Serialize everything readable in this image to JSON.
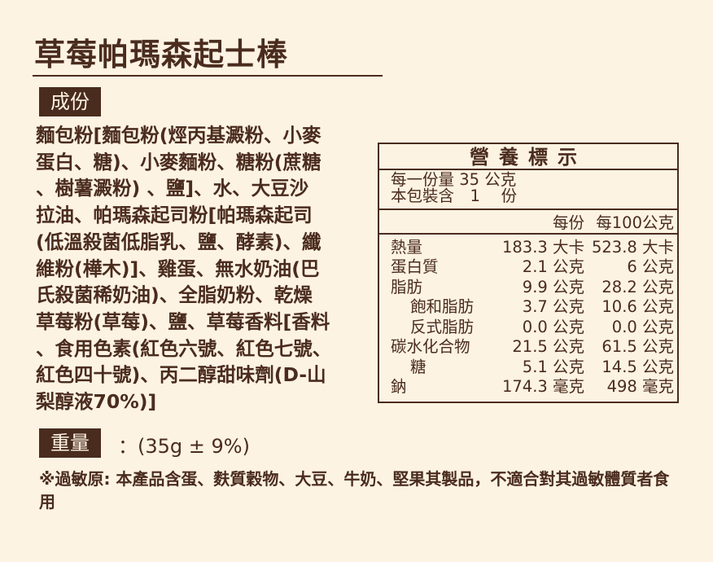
{
  "title": "草莓帕瑪森起士棒",
  "ingredients": {
    "label": "成份",
    "lines": [
      "麵包粉[麵包粉(烴丙基澱粉、小麥",
      "蛋白、糖)、小麥麵粉、糖粉(蔗糖",
      "、樹薯澱粉) 、鹽]、水、大豆沙",
      "拉油、帕瑪森起司粉[帕瑪森起司",
      "(低溫殺菌低脂乳、鹽、酵素)、纖",
      "維粉(樺木)]、雞蛋、無水奶油(巴",
      "氏殺菌稀奶油)、全脂奶粉、乾燥",
      "草莓粉(草莓)、鹽、草莓香料[香料",
      "、食用色素(紅色六號、紅色七號、",
      "紅色四十號)、丙二醇甜味劑(D-山",
      "梨醇液70%)]"
    ]
  },
  "nutrition": {
    "header": "營養標示",
    "serving_size": "每一份量 35 公克",
    "servings": "本包裝含　1　 份",
    "col_per_serving": "每份",
    "col_per_100g": "每100公克",
    "rows": [
      {
        "name": "熱量",
        "per": "183.3 大卡",
        "per100": "523.8 大卡",
        "indent": false
      },
      {
        "name": "蛋白質",
        "per": "2.1 公克",
        "per100": "6 公克",
        "indent": false
      },
      {
        "name": "脂肪",
        "per": "9.9 公克",
        "per100": "28.2 公克",
        "indent": false
      },
      {
        "name": "飽和脂肪",
        "per": "3.7 公克",
        "per100": "10.6 公克",
        "indent": true
      },
      {
        "name": "反式脂肪",
        "per": "0.0 公克",
        "per100": "0.0 公克",
        "indent": true
      },
      {
        "name": "碳水化合物",
        "per": "21.5 公克",
        "per100": "61.5 公克",
        "indent": false
      },
      {
        "name": "糖",
        "per": "5.1 公克",
        "per100": "14.5 公克",
        "indent": true
      },
      {
        "name": "鈉",
        "per": "174.3 毫克",
        "per100": "498 毫克",
        "indent": false
      }
    ]
  },
  "weight": {
    "label": "重量",
    "value": "：(35g ± 9%)"
  },
  "allergy": "※過敏原: 本產品含蛋、麩質穀物、大豆、牛奶、堅果其製品，不適合對其過敏體質者食用",
  "colors": {
    "background": "#fdf3e3",
    "text": "#4a2c1e"
  }
}
